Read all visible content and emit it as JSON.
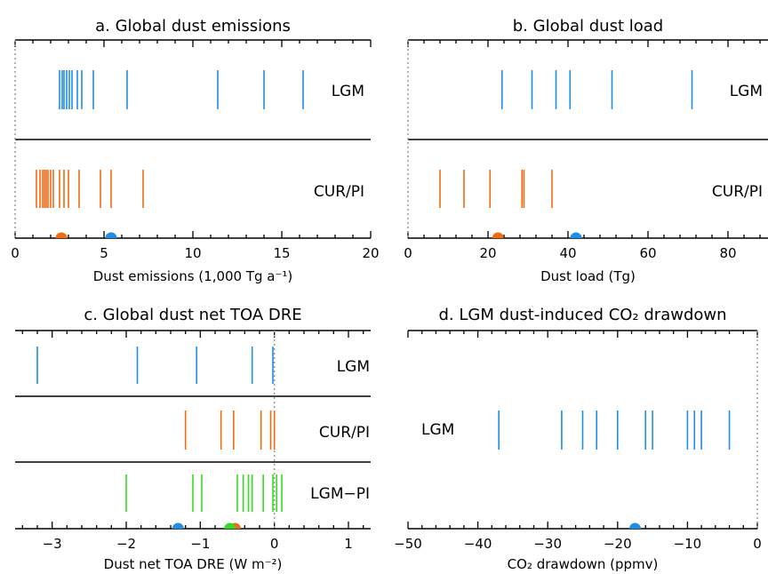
{
  "colors": {
    "lgm": "#1f8ee6",
    "cur": "#f26a12",
    "diff": "#33dd22",
    "axis": "#000000",
    "zero_line": "#999999"
  },
  "chart_data": [
    {
      "type": "scatter",
      "panel": "a",
      "title": "a. Global dust emissions",
      "xlabel": "Dust emissions (1,000 Tg a⁻¹)",
      "xlim": [
        0,
        20
      ],
      "ticks": [
        0,
        5,
        10,
        15,
        20
      ],
      "tick_labels": [
        "0",
        "5",
        "10",
        "15",
        "20"
      ],
      "series": [
        {
          "name": "LGM",
          "color": "lgm",
          "values": [
            2.5,
            2.65,
            2.75,
            2.9,
            3.05,
            3.2,
            3.5,
            3.75,
            4.4,
            6.3,
            11.4,
            14.0,
            16.2
          ]
        },
        {
          "name": "CUR/PI",
          "color": "cur",
          "values": [
            1.2,
            1.4,
            1.55,
            1.65,
            1.75,
            1.85,
            2.0,
            2.15,
            2.5,
            2.75,
            3.0,
            3.6,
            4.8,
            5.4,
            7.2
          ]
        }
      ],
      "means": [
        {
          "color": "cur",
          "value": 2.6
        },
        {
          "color": "lgm",
          "value": 5.4
        }
      ]
    },
    {
      "type": "scatter",
      "panel": "b",
      "title": "b. Global dust load",
      "xlabel": "Dust load (Tg)",
      "xlim": [
        0,
        90
      ],
      "ticks": [
        0,
        20,
        40,
        60,
        80
      ],
      "tick_labels": [
        "0",
        "20",
        "40",
        "60",
        "80"
      ],
      "series": [
        {
          "name": "LGM",
          "color": "lgm",
          "values": [
            23.5,
            31,
            37,
            40.5,
            51,
            71
          ]
        },
        {
          "name": "CUR/PI",
          "color": "cur",
          "values": [
            8,
            14,
            20.5,
            28.5,
            29,
            36
          ]
        }
      ],
      "means": [
        {
          "color": "cur",
          "value": 22.5
        },
        {
          "color": "lgm",
          "value": 42
        }
      ]
    },
    {
      "type": "scatter",
      "panel": "c",
      "title": "c. Global dust net TOA DRE",
      "xlabel": "Dust net TOA DRE (W m⁻²)",
      "xlim": [
        -3.5,
        1.3
      ],
      "ticks": [
        -3,
        -2,
        -1,
        0,
        1
      ],
      "tick_labels": [
        "−3",
        "−2",
        "−1",
        "0",
        "1"
      ],
      "series": [
        {
          "name": "LGM",
          "color": "lgm",
          "values": [
            -3.2,
            -1.85,
            -1.05,
            -0.3,
            -0.02
          ]
        },
        {
          "name": "CUR/PI",
          "color": "cur",
          "values": [
            -1.2,
            -0.72,
            -0.55,
            -0.18,
            -0.05,
            0.0
          ]
        },
        {
          "name": "LGM−PI",
          "color": "diff",
          "values": [
            -2.0,
            -1.1,
            -0.98,
            -0.5,
            -0.42,
            -0.35,
            -0.3,
            -0.15,
            -0.02,
            0.03,
            0.1
          ]
        }
      ],
      "means": [
        {
          "color": "lgm",
          "value": -1.3
        },
        {
          "color": "cur",
          "value": -0.53
        },
        {
          "color": "diff",
          "value": -0.6
        }
      ]
    },
    {
      "type": "scatter",
      "panel": "d",
      "title": "d. LGM dust-induced CO₂ drawdown",
      "xlabel": "CO₂ drawdown (ppmv)",
      "xlim": [
        -50,
        0
      ],
      "ticks": [
        -50,
        -40,
        -30,
        -20,
        -10,
        0
      ],
      "tick_labels": [
        "−50",
        "−40",
        "−30",
        "−20",
        "−10",
        "0"
      ],
      "series": [
        {
          "name": "LGM",
          "color": "lgm",
          "values": [
            -37,
            -28,
            -25,
            -23,
            -20,
            -16,
            -15,
            -10,
            -9,
            -8,
            -4
          ]
        }
      ],
      "means": [
        {
          "color": "lgm",
          "value": -17.5
        }
      ]
    }
  ]
}
